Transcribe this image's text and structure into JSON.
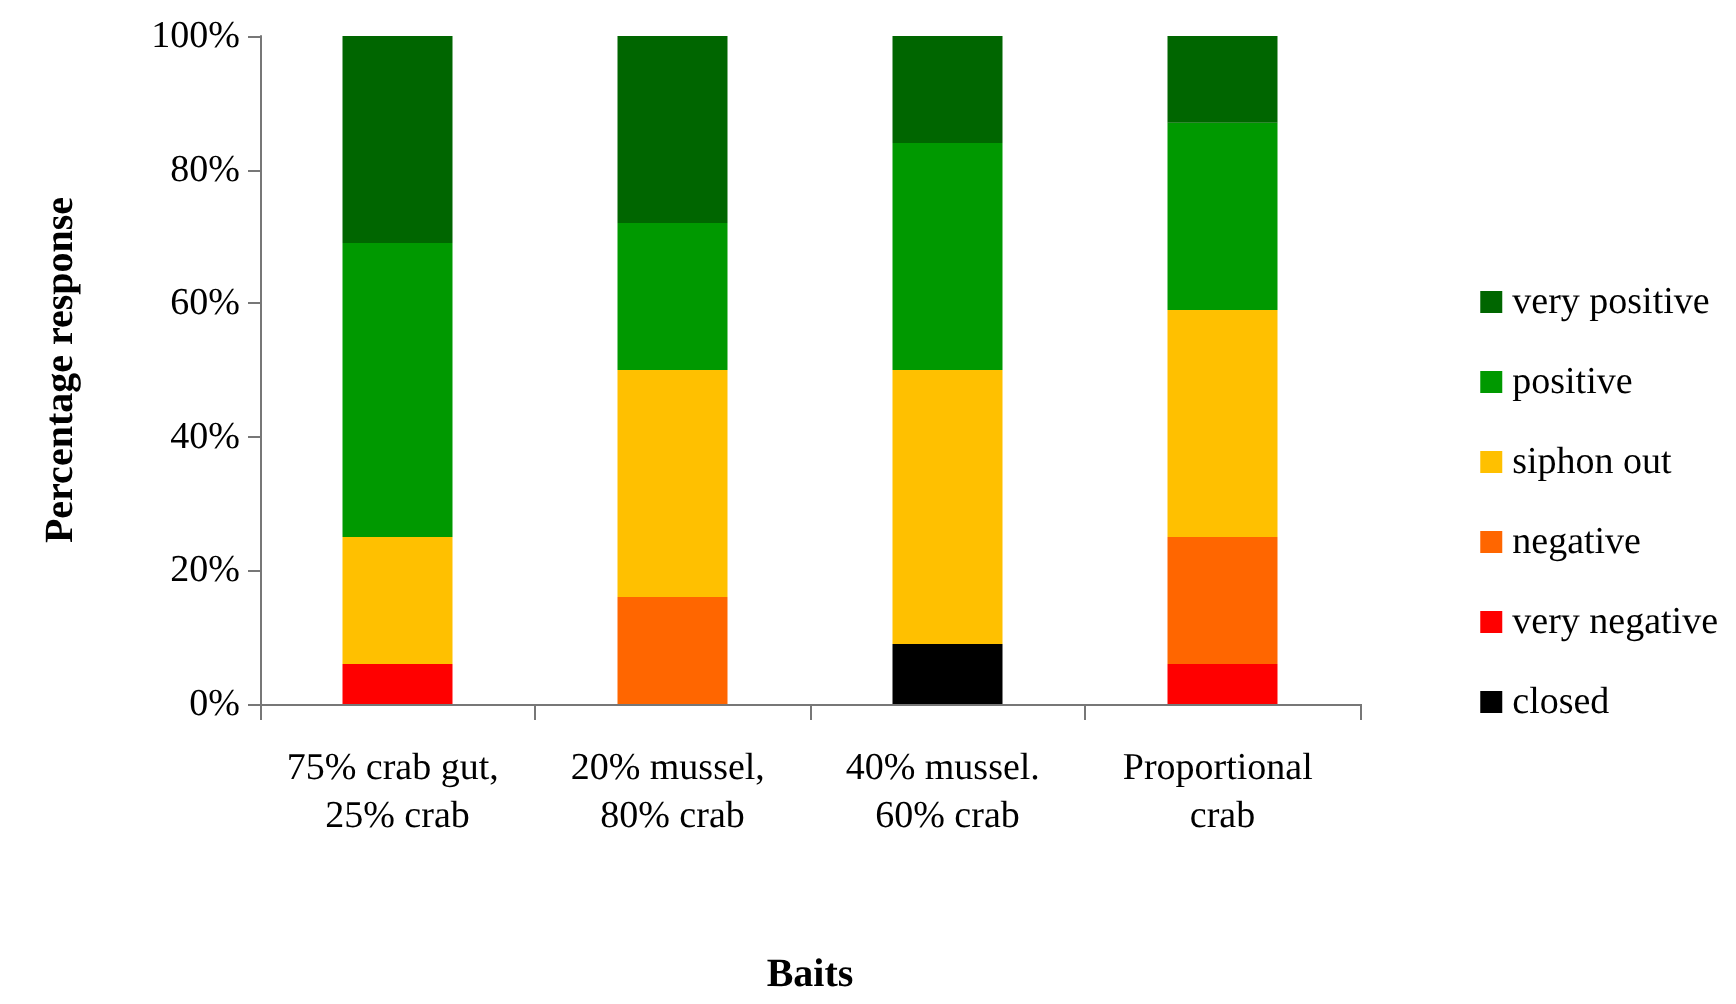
{
  "chart_data": {
    "type": "bar",
    "stacked": true,
    "xlabel": "Baits",
    "ylabel": "Percentage response",
    "categories": [
      "75% crab gut, 25% crab",
      "20% mussel, 80% crab",
      "40% mussel. 60% crab",
      "Proportional crab"
    ],
    "series": [
      {
        "name": "closed",
        "color": "#000000",
        "values": [
          0,
          0,
          9,
          0
        ]
      },
      {
        "name": "very negative",
        "color": "#ff0000",
        "values": [
          6,
          0,
          0,
          6
        ]
      },
      {
        "name": "negative",
        "color": "#ff6600",
        "values": [
          0,
          16,
          0,
          19
        ]
      },
      {
        "name": "siphon out",
        "color": "#ffc000",
        "values": [
          19,
          34,
          41,
          34
        ]
      },
      {
        "name": "positive",
        "color": "#009900",
        "values": [
          44,
          22,
          34,
          28
        ]
      },
      {
        "name": "very positive",
        "color": "#006600",
        "values": [
          31,
          28,
          16,
          13
        ]
      }
    ],
    "ylim": [
      0,
      100
    ],
    "yticks": [
      {
        "value": 0,
        "label": "0%"
      },
      {
        "value": 20,
        "label": "20%"
      },
      {
        "value": 40,
        "label": "40%"
      },
      {
        "value": 60,
        "label": "60%"
      },
      {
        "value": 80,
        "label": "80%"
      },
      {
        "value": 100,
        "label": "100%"
      }
    ],
    "grid": false,
    "legend": "right"
  }
}
